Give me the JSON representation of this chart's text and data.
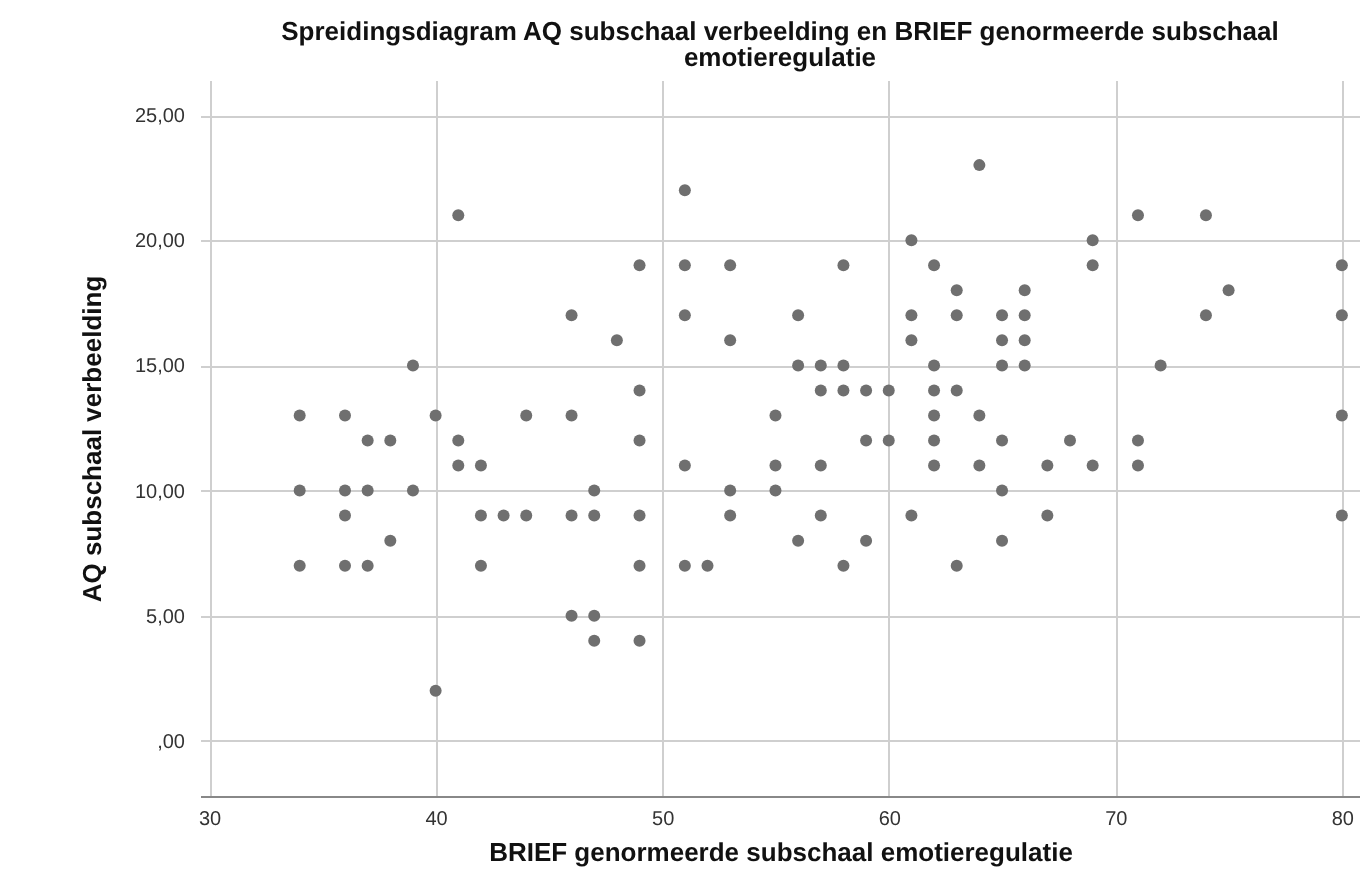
{
  "chart_data": {
    "type": "scatter",
    "title": "Spreidingsdiagram AQ subschaal verbeelding en BRIEF genormeerde subschaal emotieregulatie",
    "xlabel": "BRIEF genormeerde subschaal emotieregulatie",
    "ylabel": "AQ subschaal verbeelding",
    "xlim": [
      29.6,
      80.8
    ],
    "xticks": [
      30,
      40,
      50,
      60,
      70,
      80
    ],
    "ylim": [
      -2.2,
      26.4
    ],
    "yticks": [
      {
        "value": 0,
        "label": ",00"
      },
      {
        "value": 5,
        "label": "5,00"
      },
      {
        "value": 10,
        "label": "10,00"
      },
      {
        "value": 15,
        "label": "15,00"
      },
      {
        "value": 20,
        "label": "20,00"
      },
      {
        "value": 25,
        "label": "25,00"
      }
    ],
    "grid": true,
    "marker": "circle",
    "series": [
      {
        "color": "#6f6f6f",
        "x": [
          34,
          34,
          34,
          36,
          36,
          36,
          36,
          37,
          37,
          37,
          38,
          38,
          39,
          39,
          40,
          40,
          41,
          41,
          41,
          42,
          42,
          42,
          43,
          44,
          44,
          46,
          46,
          46,
          46,
          47,
          47,
          47,
          47,
          48,
          49,
          49,
          49,
          49,
          49,
          49,
          51,
          51,
          51,
          51,
          51,
          52,
          53,
          53,
          53,
          53,
          55,
          55,
          55,
          56,
          56,
          56,
          57,
          57,
          57,
          57,
          58,
          58,
          58,
          58,
          59,
          59,
          59,
          60,
          60,
          61,
          61,
          61,
          61,
          62,
          62,
          62,
          62,
          62,
          62,
          63,
          63,
          63,
          63,
          64,
          64,
          64,
          65,
          65,
          65,
          65,
          65,
          65,
          66,
          66,
          66,
          66,
          67,
          67,
          68,
          69,
          69,
          69,
          71,
          71,
          71,
          72,
          74,
          74,
          75,
          80,
          80,
          80,
          80
        ],
        "values": [
          13,
          10,
          7,
          13,
          10,
          9,
          7,
          12,
          10,
          7,
          12,
          8,
          15,
          10,
          13,
          2,
          21,
          12,
          11,
          11,
          9,
          7,
          9,
          13,
          9,
          17,
          13,
          9,
          5,
          10,
          9,
          5,
          4,
          16,
          19,
          14,
          12,
          9,
          7,
          4,
          22,
          19,
          17,
          11,
          7,
          7,
          19,
          16,
          10,
          9,
          13,
          11,
          10,
          17,
          15,
          8,
          15,
          14,
          11,
          9,
          19,
          15,
          14,
          7,
          14,
          12,
          8,
          14,
          12,
          20,
          17,
          16,
          9,
          19,
          15,
          14,
          13,
          12,
          11,
          18,
          17,
          14,
          7,
          23,
          13,
          11,
          17,
          16,
          15,
          12,
          10,
          8,
          18,
          17,
          16,
          15,
          11,
          9,
          12,
          20,
          19,
          11,
          21,
          12,
          11,
          15,
          21,
          17,
          18,
          19,
          17,
          13,
          9
        ]
      }
    ]
  }
}
